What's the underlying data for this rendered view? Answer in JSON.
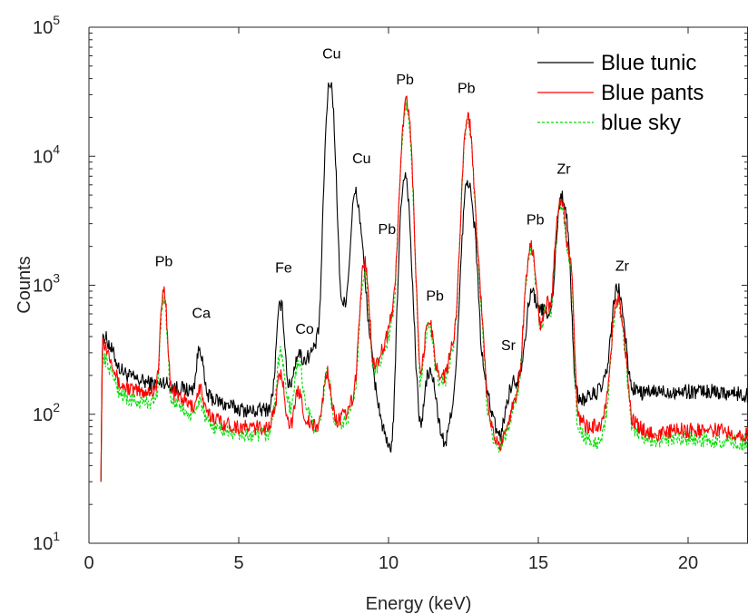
{
  "chart_data": {
    "type": "line",
    "xlabel": "Energy (keV)",
    "ylabel": "Counts",
    "xlim": [
      0,
      22
    ],
    "ylim": [
      10,
      100000
    ],
    "yscale": "log",
    "x_ticks": [
      "0",
      "5",
      "10",
      "15",
      "20"
    ],
    "y_ticks": [
      {
        "base": "10",
        "exp": "1",
        "value": 10
      },
      {
        "base": "10",
        "exp": "2",
        "value": 100
      },
      {
        "base": "10",
        "exp": "3",
        "value": 1000
      },
      {
        "base": "10",
        "exp": "4",
        "value": 10000
      },
      {
        "base": "10",
        "exp": "5",
        "value": 100000
      }
    ],
    "grid": false,
    "legend_position": "top-right",
    "series": [
      {
        "name": "Blue tunic",
        "color": "#000000",
        "dash": "solid",
        "peaks": [
          [
            2.5,
            180
          ],
          [
            3.7,
            330
          ],
          [
            6.4,
            720
          ],
          [
            7.0,
            300
          ],
          [
            8.05,
            38000
          ],
          [
            8.9,
            5200
          ],
          [
            9.2,
            380
          ],
          [
            10.55,
            7300
          ],
          [
            11.35,
            210
          ],
          [
            12.65,
            6500
          ],
          [
            14.2,
            180
          ],
          [
            14.8,
            900
          ],
          [
            15.2,
            650
          ],
          [
            15.8,
            5000
          ],
          [
            17.65,
            950
          ]
        ],
        "points": [
          [
            0.4,
            30
          ],
          [
            0.45,
            420
          ],
          [
            0.6,
            380
          ],
          [
            0.8,
            300
          ],
          [
            1.0,
            230
          ],
          [
            1.3,
            200
          ],
          [
            1.6,
            185
          ],
          [
            2.0,
            175
          ],
          [
            2.3,
            170
          ],
          [
            2.6,
            165
          ],
          [
            3.0,
            160
          ],
          [
            3.3,
            155
          ],
          [
            3.55,
            150
          ],
          [
            3.9,
            140
          ],
          [
            4.2,
            130
          ],
          [
            4.5,
            120
          ],
          [
            5.0,
            110
          ],
          [
            5.5,
            105
          ],
          [
            6.0,
            110
          ],
          [
            6.2,
            140
          ],
          [
            6.6,
            140
          ],
          [
            6.8,
            180
          ],
          [
            7.2,
            260
          ],
          [
            7.5,
            320
          ],
          [
            7.75,
            450
          ],
          [
            8.3,
            850
          ],
          [
            8.5,
            700
          ],
          [
            8.7,
            800
          ],
          [
            9.1,
            2000
          ],
          [
            9.5,
            200
          ],
          [
            9.8,
            80
          ],
          [
            10.0,
            52
          ],
          [
            10.2,
            60
          ],
          [
            10.35,
            180
          ],
          [
            10.85,
            300
          ],
          [
            11.05,
            80
          ],
          [
            11.2,
            60
          ],
          [
            11.45,
            180
          ],
          [
            11.7,
            80
          ],
          [
            11.9,
            55
          ],
          [
            12.2,
            150
          ],
          [
            12.9,
            2000
          ],
          [
            13.1,
            300
          ],
          [
            13.3,
            150
          ],
          [
            13.5,
            90
          ],
          [
            13.7,
            65
          ],
          [
            14.0,
            120
          ],
          [
            14.5,
            250
          ],
          [
            15.1,
            620
          ],
          [
            15.4,
            500
          ],
          [
            16.0,
            1000
          ],
          [
            16.2,
            140
          ],
          [
            16.5,
            130
          ],
          [
            17.0,
            150
          ],
          [
            17.4,
            200
          ],
          [
            17.9,
            250
          ],
          [
            18.1,
            160
          ],
          [
            18.5,
            145
          ],
          [
            19.0,
            150
          ],
          [
            19.5,
            150
          ],
          [
            20.0,
            150
          ],
          [
            21.0,
            150
          ],
          [
            22.0,
            140
          ]
        ]
      },
      {
        "name": "Blue pants",
        "color": "#ff0000",
        "dash": "solid",
        "peaks": [
          [
            2.5,
            930
          ],
          [
            3.7,
            160
          ],
          [
            6.4,
            200
          ],
          [
            7.0,
            150
          ],
          [
            7.95,
            210
          ],
          [
            9.2,
            1500
          ],
          [
            10.6,
            27000
          ],
          [
            11.35,
            540
          ],
          [
            12.65,
            20000
          ],
          [
            14.75,
            2000
          ],
          [
            15.3,
            720
          ],
          [
            15.75,
            4500
          ],
          [
            17.65,
            780
          ]
        ],
        "points": [
          [
            0.4,
            30
          ],
          [
            0.45,
            400
          ],
          [
            0.6,
            320
          ],
          [
            0.8,
            250
          ],
          [
            1.0,
            170
          ],
          [
            1.3,
            160
          ],
          [
            1.6,
            150
          ],
          [
            2.0,
            150
          ],
          [
            2.3,
            160
          ],
          [
            2.7,
            150
          ],
          [
            3.0,
            140
          ],
          [
            3.3,
            120
          ],
          [
            3.9,
            100
          ],
          [
            4.2,
            95
          ],
          [
            4.5,
            85
          ],
          [
            5.0,
            80
          ],
          [
            5.5,
            78
          ],
          [
            6.0,
            80
          ],
          [
            6.2,
            100
          ],
          [
            6.6,
            90
          ],
          [
            6.8,
            80
          ],
          [
            7.2,
            90
          ],
          [
            7.5,
            80
          ],
          [
            7.75,
            80
          ],
          [
            8.3,
            90
          ],
          [
            8.6,
            100
          ],
          [
            8.9,
            150
          ],
          [
            9.5,
            220
          ],
          [
            9.8,
            320
          ],
          [
            10.0,
            450
          ],
          [
            10.2,
            800
          ],
          [
            10.35,
            2000
          ],
          [
            10.85,
            900
          ],
          [
            11.05,
            180
          ],
          [
            11.2,
            160
          ],
          [
            11.6,
            200
          ],
          [
            11.9,
            200
          ],
          [
            12.2,
            400
          ],
          [
            13.0,
            1500
          ],
          [
            13.3,
            120
          ],
          [
            13.5,
            70
          ],
          [
            13.7,
            55
          ],
          [
            14.0,
            90
          ],
          [
            14.3,
            150
          ],
          [
            15.0,
            400
          ],
          [
            15.5,
            400
          ],
          [
            16.1,
            1500
          ],
          [
            16.3,
            100
          ],
          [
            16.6,
            80
          ],
          [
            17.0,
            80
          ],
          [
            17.3,
            100
          ],
          [
            17.9,
            200
          ],
          [
            18.1,
            90
          ],
          [
            18.5,
            75
          ],
          [
            19.0,
            70
          ],
          [
            19.5,
            75
          ],
          [
            20.0,
            75
          ],
          [
            21.0,
            75
          ],
          [
            22.0,
            70
          ]
        ]
      },
      {
        "name": "blue sky",
        "color": "#00dd00",
        "dash": "dashed",
        "peaks": [
          [
            2.5,
            820
          ],
          [
            3.7,
            130
          ],
          [
            6.4,
            300
          ],
          [
            7.0,
            260
          ],
          [
            7.95,
            200
          ],
          [
            9.2,
            1300
          ],
          [
            10.6,
            25000
          ],
          [
            11.35,
            480
          ],
          [
            12.65,
            19000
          ],
          [
            14.75,
            1800
          ],
          [
            15.3,
            650
          ],
          [
            15.75,
            4200
          ],
          [
            17.65,
            720
          ]
        ],
        "points": [
          [
            0.4,
            30
          ],
          [
            0.45,
            300
          ],
          [
            0.6,
            250
          ],
          [
            0.8,
            200
          ],
          [
            1.0,
            150
          ],
          [
            1.3,
            130
          ],
          [
            1.6,
            125
          ],
          [
            2.0,
            125
          ],
          [
            2.3,
            130
          ],
          [
            2.7,
            125
          ],
          [
            3.0,
            120
          ],
          [
            3.3,
            100
          ],
          [
            3.9,
            85
          ],
          [
            4.2,
            80
          ],
          [
            4.5,
            75
          ],
          [
            5.0,
            70
          ],
          [
            5.5,
            68
          ],
          [
            6.0,
            70
          ],
          [
            6.2,
            100
          ],
          [
            6.6,
            120
          ],
          [
            6.8,
            100
          ],
          [
            7.2,
            120
          ],
          [
            7.5,
            80
          ],
          [
            7.75,
            75
          ],
          [
            8.3,
            80
          ],
          [
            8.6,
            90
          ],
          [
            8.9,
            130
          ],
          [
            9.5,
            200
          ],
          [
            9.8,
            280
          ],
          [
            10.0,
            400
          ],
          [
            10.2,
            700
          ],
          [
            10.35,
            1800
          ],
          [
            10.85,
            800
          ],
          [
            11.05,
            160
          ],
          [
            11.2,
            140
          ],
          [
            11.6,
            180
          ],
          [
            11.9,
            180
          ],
          [
            12.2,
            350
          ],
          [
            13.0,
            1400
          ],
          [
            13.3,
            110
          ],
          [
            13.5,
            65
          ],
          [
            13.7,
            55
          ],
          [
            14.0,
            80
          ],
          [
            14.3,
            140
          ],
          [
            15.0,
            380
          ],
          [
            15.5,
            380
          ],
          [
            16.1,
            1400
          ],
          [
            16.3,
            75
          ],
          [
            16.6,
            65
          ],
          [
            17.0,
            60
          ],
          [
            17.3,
            85
          ],
          [
            17.9,
            180
          ],
          [
            18.1,
            80
          ],
          [
            18.5,
            68
          ],
          [
            19.0,
            62
          ],
          [
            19.5,
            65
          ],
          [
            20.0,
            65
          ],
          [
            21.0,
            62
          ],
          [
            22.0,
            60
          ]
        ]
      }
    ],
    "annotations": [
      {
        "text": "Pb",
        "x": 2.5,
        "y": 1400
      },
      {
        "text": "Ca",
        "x": 3.75,
        "y": 560
      },
      {
        "text": "Fe",
        "x": 6.5,
        "y": 1250
      },
      {
        "text": "Co",
        "x": 7.2,
        "y": 420
      },
      {
        "text": "Cu",
        "x": 8.1,
        "y": 57000
      },
      {
        "text": "Cu",
        "x": 9.1,
        "y": 8800
      },
      {
        "text": "Pb",
        "x": 9.95,
        "y": 2500
      },
      {
        "text": "Pb",
        "x": 10.55,
        "y": 36000
      },
      {
        "text": "Pb",
        "x": 11.55,
        "y": 760
      },
      {
        "text": "Pb",
        "x": 12.6,
        "y": 31000
      },
      {
        "text": "Sr",
        "x": 14.0,
        "y": 315
      },
      {
        "text": "Pb",
        "x": 14.9,
        "y": 2950
      },
      {
        "text": "Zr",
        "x": 15.85,
        "y": 7300
      },
      {
        "text": "Zr",
        "x": 17.8,
        "y": 1300
      }
    ]
  }
}
